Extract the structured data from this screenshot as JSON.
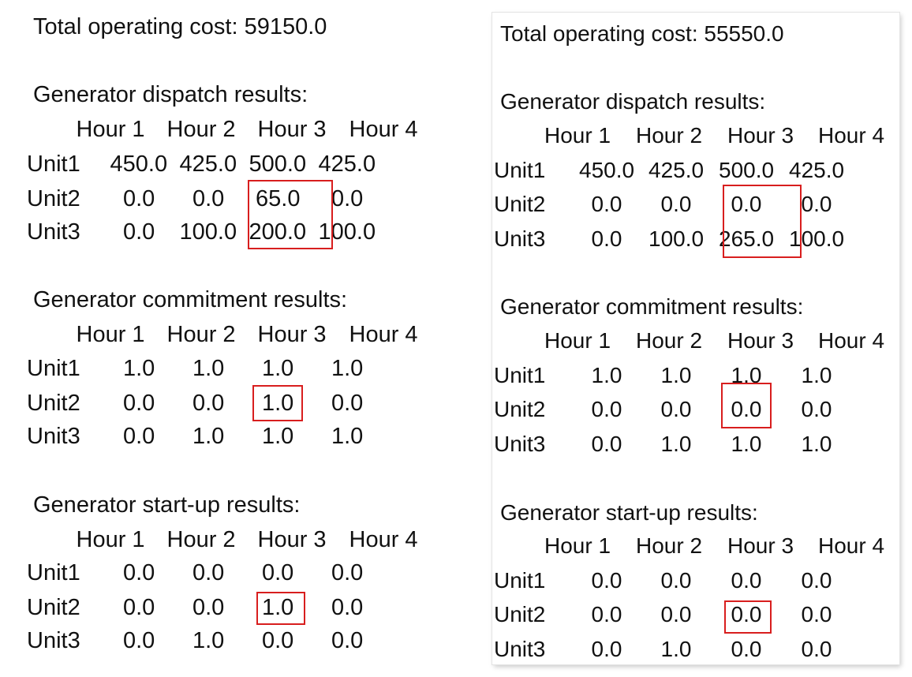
{
  "left": {
    "total_cost": "Total operating cost: 59150.0",
    "sections": [
      {
        "title": "Generator dispatch results:",
        "headers": [
          "Hour 1",
          "Hour 2",
          "Hour 3",
          "Hour 4"
        ],
        "rows": [
          {
            "unit": "Unit1",
            "values": [
              "450.0",
              "425.0",
              "500.0",
              "425.0"
            ]
          },
          {
            "unit": "Unit2",
            "values": [
              "0.0",
              "0.0",
              "65.0",
              "0.0"
            ]
          },
          {
            "unit": "Unit3",
            "values": [
              "0.0",
              "100.0",
              "200.0",
              "100.0"
            ]
          }
        ]
      },
      {
        "title": "Generator commitment results:",
        "headers": [
          "Hour 1",
          "Hour 2",
          "Hour 3",
          "Hour 4"
        ],
        "rows": [
          {
            "unit": "Unit1",
            "values": [
              "1.0",
              "1.0",
              "1.0",
              "1.0"
            ]
          },
          {
            "unit": "Unit2",
            "values": [
              "0.0",
              "0.0",
              "1.0",
              "0.0"
            ]
          },
          {
            "unit": "Unit3",
            "values": [
              "0.0",
              "1.0",
              "1.0",
              "1.0"
            ]
          }
        ]
      },
      {
        "title": "Generator start-up results:",
        "headers": [
          "Hour 1",
          "Hour 2",
          "Hour 3",
          "Hour 4"
        ],
        "rows": [
          {
            "unit": "Unit1",
            "values": [
              "0.0",
              "0.0",
              "0.0",
              "0.0"
            ]
          },
          {
            "unit": "Unit2",
            "values": [
              "0.0",
              "0.0",
              "1.0",
              "0.0"
            ]
          },
          {
            "unit": "Unit3",
            "values": [
              "0.0",
              "1.0",
              "0.0",
              "0.0"
            ]
          }
        ]
      }
    ]
  },
  "right": {
    "total_cost": "Total operating cost: 55550.0",
    "sections": [
      {
        "title": "Generator dispatch results:",
        "headers": [
          "Hour 1",
          "Hour 2",
          "Hour 3",
          "Hour 4"
        ],
        "rows": [
          {
            "unit": "Unit1",
            "values": [
              "450.0",
              "425.0",
              "500.0",
              "425.0"
            ]
          },
          {
            "unit": "Unit2",
            "values": [
              "0.0",
              "0.0",
              "0.0",
              "0.0"
            ]
          },
          {
            "unit": "Unit3",
            "values": [
              "0.0",
              "100.0",
              "265.0",
              "100.0"
            ]
          }
        ]
      },
      {
        "title": "Generator commitment results:",
        "headers": [
          "Hour 1",
          "Hour 2",
          "Hour 3",
          "Hour 4"
        ],
        "rows": [
          {
            "unit": "Unit1",
            "values": [
              "1.0",
              "1.0",
              "1.0",
              "1.0"
            ]
          },
          {
            "unit": "Unit2",
            "values": [
              "0.0",
              "0.0",
              "0.0",
              "0.0"
            ]
          },
          {
            "unit": "Unit3",
            "values": [
              "0.0",
              "1.0",
              "1.0",
              "1.0"
            ]
          }
        ]
      },
      {
        "title": "Generator start-up results:",
        "headers": [
          "Hour 1",
          "Hour 2",
          "Hour 3",
          "Hour 4"
        ],
        "rows": [
          {
            "unit": "Unit1",
            "values": [
              "0.0",
              "0.0",
              "0.0",
              "0.0"
            ]
          },
          {
            "unit": "Unit2",
            "values": [
              "0.0",
              "0.0",
              "0.0",
              "0.0"
            ]
          },
          {
            "unit": "Unit3",
            "values": [
              "0.0",
              "1.0",
              "0.0",
              "0.0"
            ]
          }
        ]
      }
    ]
  },
  "highlight_color": "#d81e1e"
}
